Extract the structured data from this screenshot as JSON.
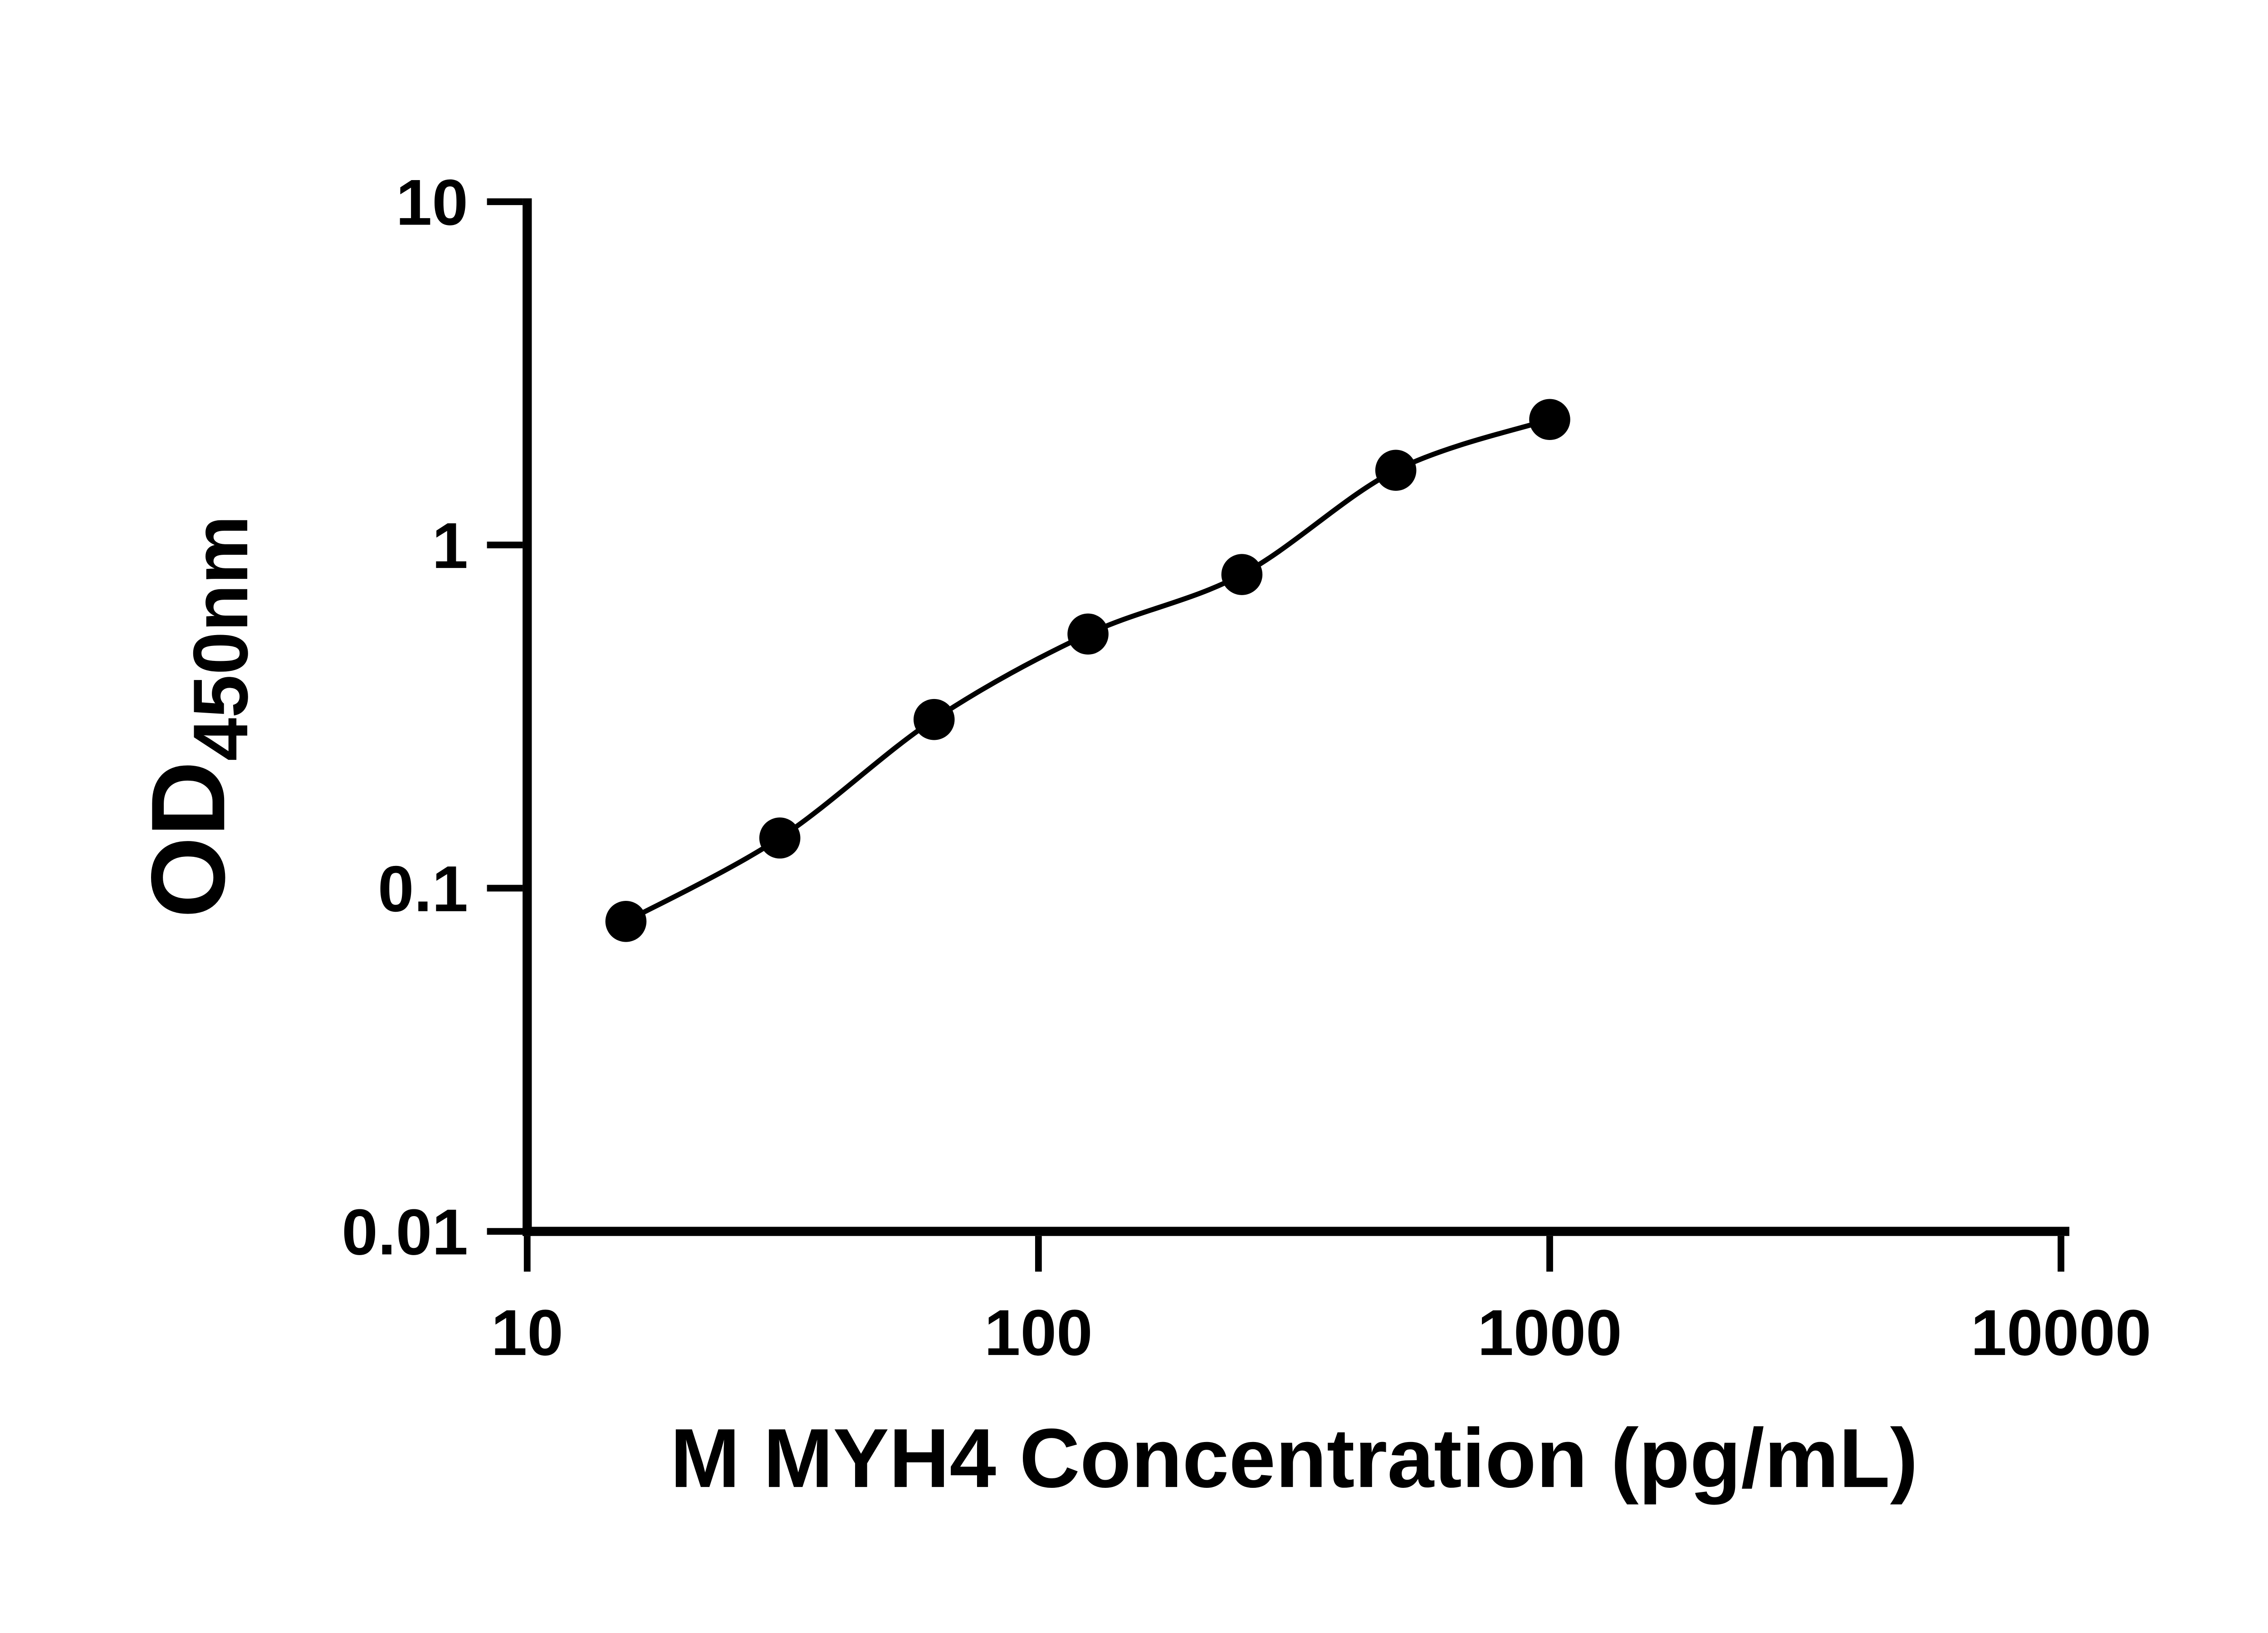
{
  "figure": {
    "background": "#ffffff"
  },
  "chart_data": {
    "type": "scatter",
    "x": [
      15.6,
      31.2,
      62.5,
      125,
      250,
      500,
      1000
    ],
    "y": [
      0.08,
      0.14,
      0.31,
      0.55,
      0.82,
      1.65,
      2.32
    ],
    "xlabel": "M MYH4 Concentration (pg/mL)",
    "ylabel_main": "OD",
    "ylabel_sub": "450nm",
    "x_scale": "log",
    "y_scale": "log",
    "xlim": [
      10,
      10000
    ],
    "ylim": [
      0.01,
      10
    ],
    "x_ticks": [
      10,
      100,
      1000,
      10000
    ],
    "x_tick_labels": [
      "10",
      "100",
      "1000",
      "10000"
    ],
    "y_ticks": [
      10,
      1,
      0.1,
      0.01
    ],
    "y_tick_labels": [
      "10",
      "1",
      "0.1",
      "0.01"
    ],
    "grid": false,
    "legend": false,
    "curve": "smooth",
    "marker_shape": "circle",
    "colors": {
      "axis": "#000000",
      "marker": "#000000",
      "line": "#000000",
      "text": "#000000"
    }
  }
}
